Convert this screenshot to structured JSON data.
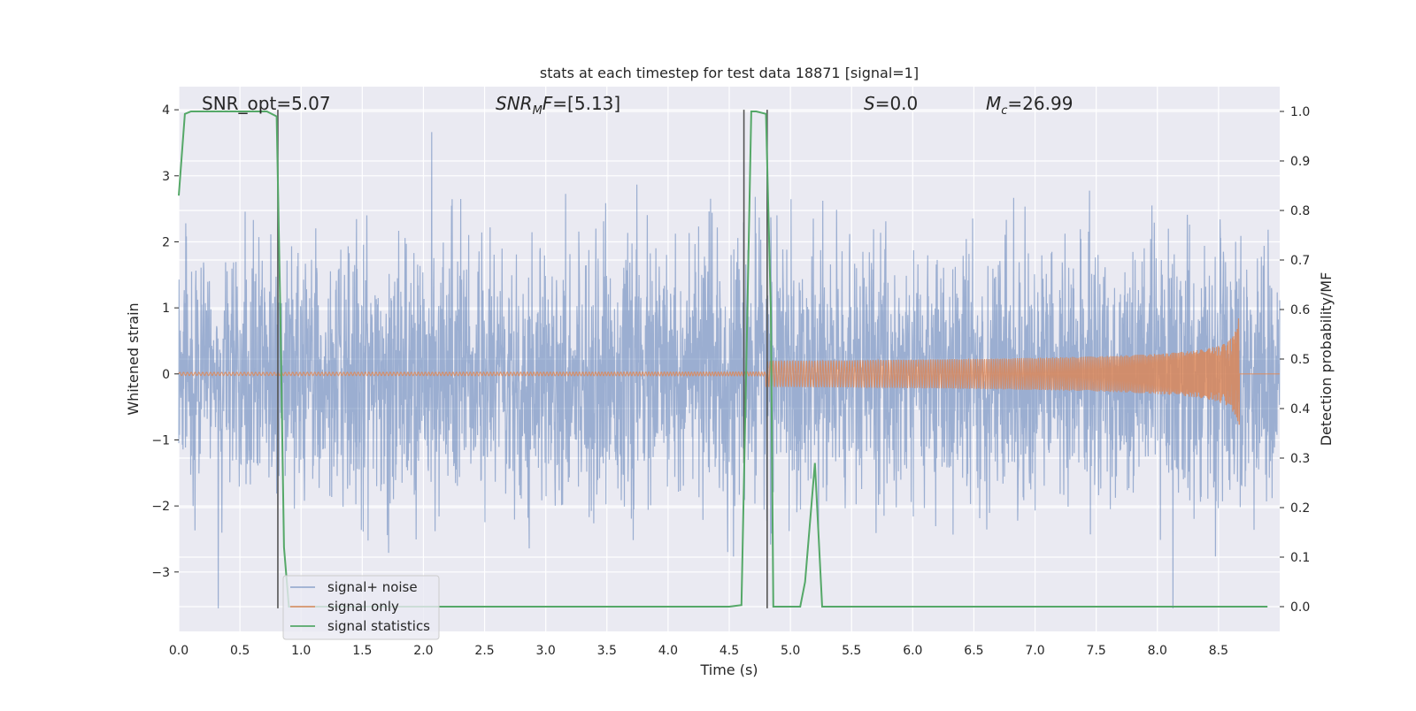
{
  "chart_data": {
    "type": "line",
    "title": "stats at each timestep for test data 18871 [signal=1]",
    "xlabel": "Time (s)",
    "ylabel_left": "Whitened strain",
    "ylabel_right": "Detection probability/MF",
    "xlim": [
      0.0,
      9.0
    ],
    "ylim_left": [
      -3.9,
      4.35
    ],
    "ylim_right": [
      -0.05,
      1.05
    ],
    "x_ticks": [
      "0.0",
      "0.5",
      "1.0",
      "1.5",
      "2.0",
      "2.5",
      "3.0",
      "3.5",
      "4.0",
      "4.5",
      "5.0",
      "5.5",
      "6.0",
      "6.5",
      "7.0",
      "7.5",
      "8.0",
      "8.5"
    ],
    "left_ticks": [
      "4",
      "3",
      "2",
      "1",
      "0",
      "−1",
      "−2",
      "−3"
    ],
    "right_ticks": [
      "1.0",
      "0.9",
      "0.8",
      "0.7",
      "0.6",
      "0.5",
      "0.4",
      "0.3",
      "0.2",
      "0.1",
      "0.0"
    ],
    "grid": true,
    "legend_position": "lower-left",
    "annotations": {
      "snr_opt": "SNR_opt=5.07",
      "snr_mf": "=[5.13]",
      "s": "=0.0",
      "mc": "=26.99"
    },
    "series": [
      {
        "name": "signal+ noise",
        "color": "#4c72b0",
        "axis": "left",
        "description_values": {
          "typical_max": 2.2,
          "typical_min": -2.4,
          "peak": 4.0,
          "trough": -3.55
        }
      },
      {
        "name": "signal only",
        "color": "#dd8452",
        "axis": "left",
        "chirp_end_time": 8.67,
        "peak_amplitude": 1.1
      },
      {
        "name": "signal statistics",
        "color": "#55a868",
        "axis": "right",
        "x": [
          0.0,
          0.05,
          0.1,
          0.2,
          0.4,
          0.6,
          0.72,
          0.8,
          0.83,
          0.86,
          0.9,
          1.0,
          2.0,
          3.0,
          4.0,
          4.5,
          4.6,
          4.64,
          4.68,
          4.72,
          4.8,
          4.84,
          4.86,
          4.9,
          5.0,
          5.08,
          5.12,
          5.2,
          5.26,
          5.4,
          6.0,
          7.0,
          8.0,
          8.9
        ],
        "y": [
          0.83,
          0.995,
          1.0,
          1.0,
          1.0,
          1.0,
          1.0,
          0.99,
          0.6,
          0.12,
          0.0,
          0.0,
          0.0,
          0.0,
          0.0,
          0.0,
          0.003,
          0.5,
          1.0,
          1.0,
          0.995,
          0.6,
          0.0,
          0.0,
          0.0,
          0.0,
          0.05,
          0.29,
          0.0,
          0.0,
          0.0,
          0.0,
          0.0,
          0.0
        ]
      }
    ],
    "vlines": [
      {
        "x": 0.81,
        "y0": -3.55,
        "y1": 4.0
      },
      {
        "x": 4.62,
        "y0": -1.35,
        "y1": 4.0
      },
      {
        "x": 4.81,
        "y0": -3.55,
        "y1": 4.0
      }
    ]
  }
}
